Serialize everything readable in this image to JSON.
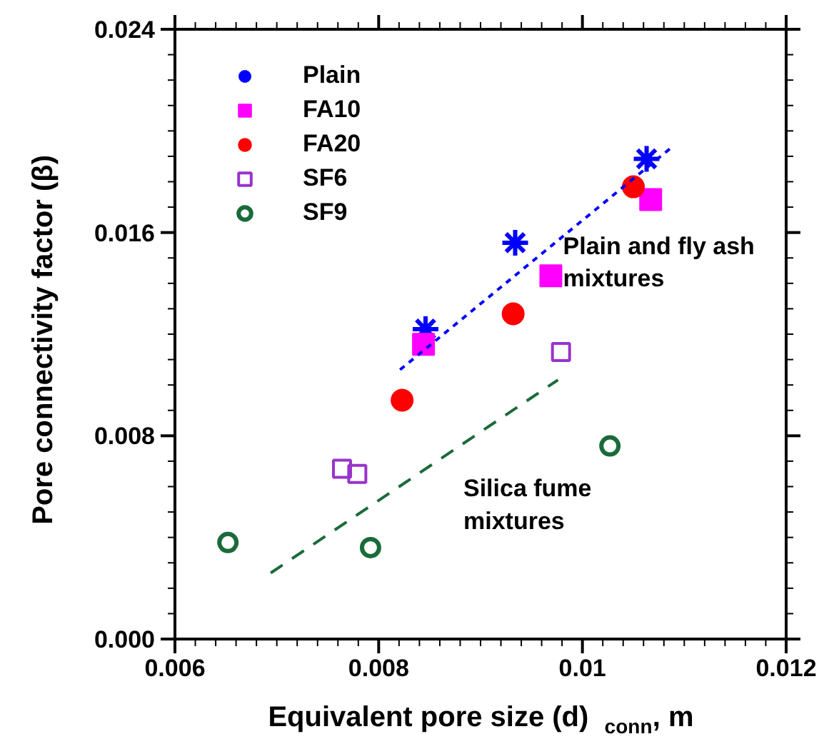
{
  "chart_data": {
    "type": "scatter",
    "xlabel": "Equivalent pore size (d)$_{conn}$, m",
    "ylabel": "Pore connectivity factor (β)",
    "xlim": [
      0.006,
      0.012
    ],
    "xticks": [
      0.006,
      0.008,
      0.01,
      0.012
    ],
    "ylim": [
      0.0,
      0.024
    ],
    "yticks": [
      {
        "value": 0.0,
        "label": "0.000"
      },
      0.008,
      0.016,
      0.024
    ],
    "grid": false,
    "legend": "top left",
    "series": [
      {
        "name": "Plain",
        "color": "#0000ff",
        "marker": "cross",
        "x": [
          0.00846,
          0.00934,
          0.01063
        ],
        "values": [
          0.0122,
          0.0156,
          0.0189
        ]
      },
      {
        "name": "FA10",
        "color": "#ff00ff",
        "marker": "square",
        "x": [
          0.00844,
          0.00969,
          0.01067
        ],
        "values": [
          0.0116,
          0.0143,
          0.0173
        ]
      },
      {
        "name": "FA20",
        "color": "#ff0000",
        "marker": "circle",
        "x": [
          0.00823,
          0.00932,
          0.0105
        ],
        "values": [
          0.0094,
          0.0128,
          0.0178
        ]
      },
      {
        "name": "SF6",
        "color": "#9933cc",
        "marker": "square",
        "x": [
          0.00764,
          0.00779,
          0.00979
        ],
        "values": [
          0.0067,
          0.0065,
          0.0113
        ]
      },
      {
        "name": "SF9",
        "color": "#1a6b3a",
        "marker": "circle",
        "x": [
          0.00652,
          0.00792,
          0.01027
        ],
        "values": [
          0.0038,
          0.0036,
          0.0076
        ]
      },
      {
        "type": "line",
        "color": "#0000ff",
        "line_style": "dashed",
        "x": [
          0.00821,
          0.01089
        ],
        "values": [
          0.0106,
          0.0194
        ]
      },
      {
        "type": "line",
        "color": "#1a6b3a",
        "line_style": "dashed",
        "x": [
          0.00694,
          0.00976
        ],
        "values": [
          0.0026,
          0.0102
        ]
      }
    ],
    "annotations": [
      {
        "text": "Plain and fly ash\nmixtures",
        "x": 0.00981,
        "y": 0.016
      },
      "Silica fume\nmixtures"
    ]
  }
}
